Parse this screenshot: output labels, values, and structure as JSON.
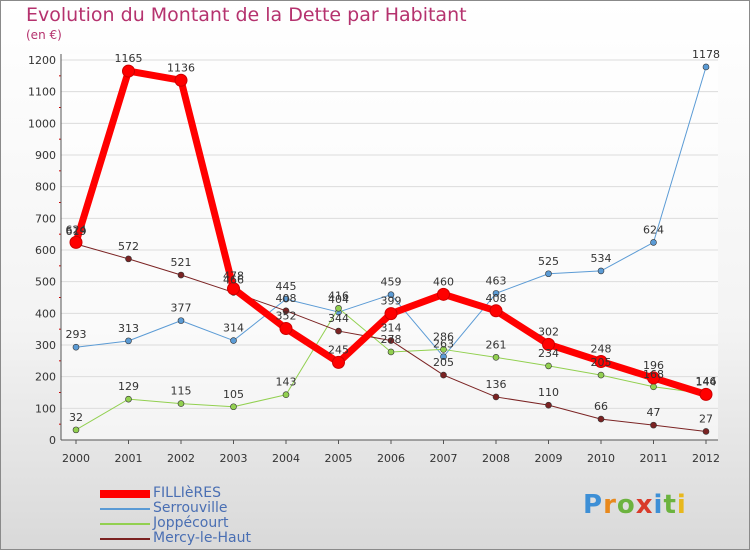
{
  "header": {
    "title": "Evolution du Montant de la Dette par Habitant",
    "unit": "(en €)"
  },
  "brand": {
    "letters": [
      "P",
      "r",
      "o",
      "x",
      "i",
      "t",
      "i"
    ],
    "text": "Proxiti"
  },
  "chart_data": {
    "type": "line",
    "title": "Evolution du Montant de la Dette par Habitant",
    "ylabel": "(en €)",
    "xlabel": "",
    "x": [
      "2000",
      "2001",
      "2002",
      "2003",
      "2004",
      "2005",
      "2006",
      "2007",
      "2008",
      "2009",
      "2010",
      "2011",
      "2012"
    ],
    "ylim": [
      0,
      1200
    ],
    "yticks": [
      0,
      100,
      200,
      300,
      400,
      500,
      600,
      700,
      800,
      900,
      1000,
      1100,
      1200
    ],
    "grid": true,
    "legend_position": "bottom-left",
    "series": [
      {
        "name": "FILLIèRES",
        "color": "#ff0000",
        "width": 7,
        "values": [
          624,
          1165,
          1136,
          478,
          352,
          245,
          399,
          460,
          408,
          302,
          248,
          196,
          144
        ]
      },
      {
        "name": "Serrouville",
        "color": "#5b9bd5",
        "width": 1,
        "values": [
          293,
          313,
          377,
          314,
          445,
          404,
          459,
          263,
          463,
          525,
          534,
          624,
          1178
        ]
      },
      {
        "name": "Joppécourt",
        "color": "#92d050",
        "width": 1,
        "values": [
          32,
          129,
          115,
          105,
          143,
          416,
          278,
          286,
          261,
          234,
          205,
          168,
          146
        ]
      },
      {
        "name": "Mercy-le-Haut",
        "color": "#7b2323",
        "width": 1,
        "values": [
          619,
          572,
          521,
          466,
          408,
          344,
          314,
          205,
          136,
          110,
          66,
          47,
          27
        ]
      }
    ]
  }
}
